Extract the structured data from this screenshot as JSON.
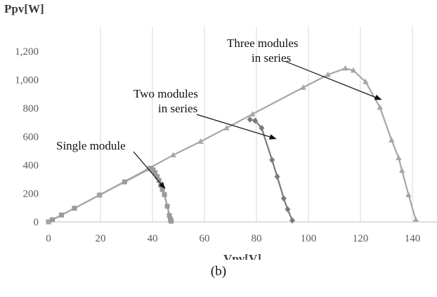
{
  "chart_data": {
    "type": "scatter",
    "title": "",
    "xlabel": "Vpv[V]",
    "ylabel": "Ppv[W]",
    "xlim": [
      0,
      150
    ],
    "ylim": [
      0,
      1200
    ],
    "x_ticks": [
      "0",
      "20",
      "40",
      "60",
      "80",
      "100",
      "120",
      "140"
    ],
    "y_ticks": [
      "0",
      "200",
      "400",
      "600",
      "800",
      "1,000",
      "1,200"
    ],
    "grid": "vertical",
    "legend": "none",
    "series": [
      {
        "marker": "square",
        "color": "#9a9a9a",
        "points": [
          [
            0,
            0
          ],
          [
            1.5,
            15
          ],
          [
            5,
            48
          ],
          [
            10,
            96
          ],
          [
            19.6,
            188
          ],
          [
            29.3,
            281
          ],
          [
            39,
            374
          ],
          [
            39.5,
            377
          ],
          [
            40.3,
            365
          ],
          [
            41,
            345
          ],
          [
            41.8,
            318
          ],
          [
            42.5,
            292
          ],
          [
            43.2,
            258
          ],
          [
            43.8,
            228
          ],
          [
            44.6,
            192
          ],
          [
            45.7,
            110
          ],
          [
            46.5,
            45
          ],
          [
            46.9,
            20
          ],
          [
            47.2,
            5
          ]
        ]
      },
      {
        "marker": "diamond",
        "color": "#7a7a7a",
        "points": [
          [
            77.5,
            720
          ],
          [
            79.5,
            712
          ],
          [
            82,
            660
          ],
          [
            86,
            435
          ],
          [
            88,
            318
          ],
          [
            90.5,
            165
          ],
          [
            92,
            88
          ],
          [
            93.8,
            10
          ]
        ]
      },
      {
        "marker": "triangle",
        "color": "#a6a6a6",
        "points": [
          [
            0,
            0
          ],
          [
            19.6,
            188
          ],
          [
            38.5,
            375
          ],
          [
            48,
            470
          ],
          [
            58.5,
            565
          ],
          [
            68.5,
            660
          ],
          [
            78.5,
            758
          ],
          [
            98,
            945
          ],
          [
            107.5,
            1035
          ],
          [
            114.2,
            1080
          ],
          [
            117.3,
            1065
          ],
          [
            122,
            985
          ],
          [
            127.5,
            805
          ],
          [
            132,
            575
          ],
          [
            134.7,
            450
          ],
          [
            136,
            360
          ],
          [
            138.5,
            190
          ],
          [
            141.3,
            15
          ]
        ]
      }
    ],
    "annotations": [
      {
        "lines": [
          "Single module"
        ],
        "target": [
          44.8,
          235
        ]
      },
      {
        "lines": [
          "Two modules",
          "in series"
        ],
        "target": [
          87.5,
          585
        ]
      },
      {
        "lines": [
          "Three modules",
          "in series"
        ],
        "target": [
          128,
          860
        ]
      }
    ]
  },
  "caption": "(b)"
}
